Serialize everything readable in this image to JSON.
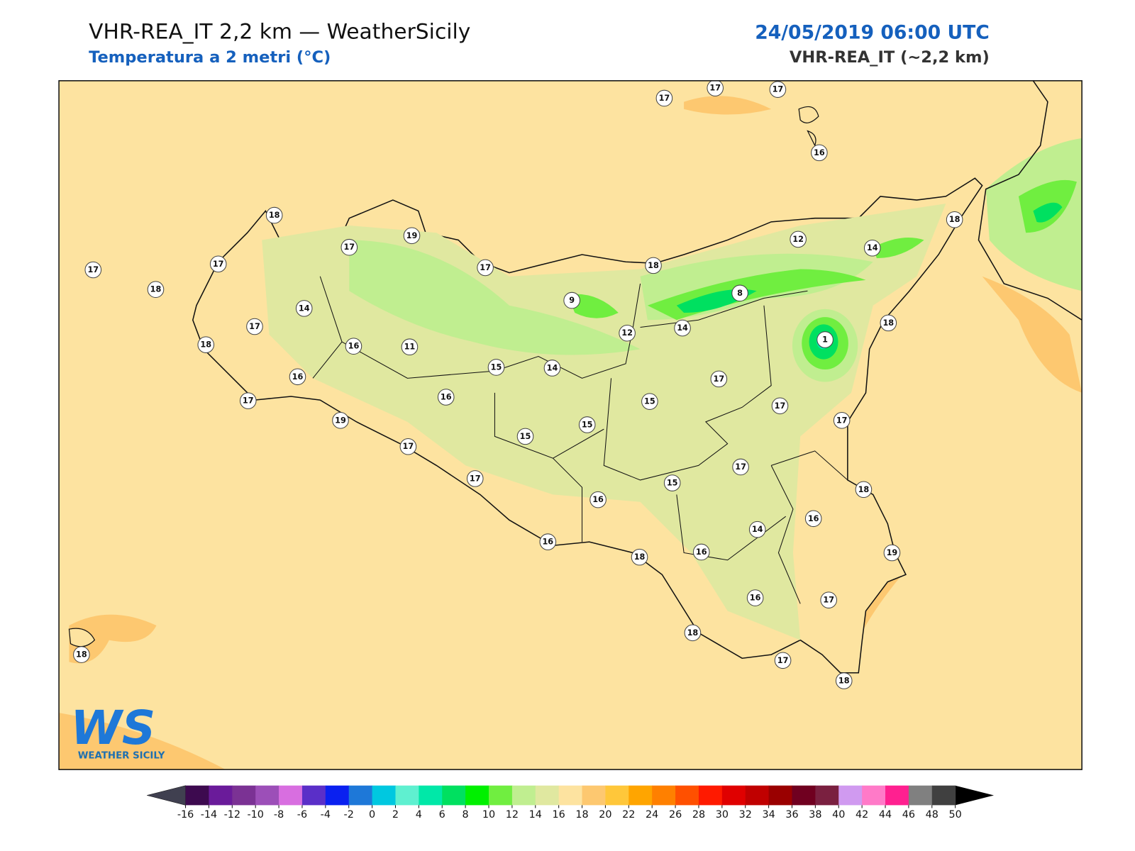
{
  "header": {
    "title": "VHR-REA_IT 2,2 km — WeatherSicily",
    "subtitle": "Temperatura a 2 metri (°C)",
    "date": "24/05/2019 06:00 UTC",
    "model": "VHR-REA_IT (~2,2 km)"
  },
  "stations": [
    17,
    17,
    17,
    16,
    18,
    19,
    17,
    17,
    17,
    18,
    17,
    18,
    12,
    14,
    18,
    9,
    8,
    14,
    12,
    1,
    18,
    14,
    17,
    18,
    16,
    11,
    15,
    14,
    16,
    17,
    16,
    17,
    15,
    17,
    17,
    19,
    15,
    15,
    17,
    17,
    17,
    15,
    18,
    16,
    16,
    14,
    19,
    16,
    18,
    16,
    17,
    16,
    18,
    17,
    18,
    18
  ],
  "colorbar": {
    "ticks": [
      -16,
      -14,
      -12,
      -10,
      -8,
      -6,
      -4,
      -2,
      0,
      2,
      4,
      6,
      8,
      10,
      12,
      14,
      16,
      18,
      20,
      22,
      24,
      26,
      28,
      30,
      32,
      34,
      36,
      38,
      40,
      42,
      44,
      46,
      48,
      50
    ],
    "colors": [
      "#3d0a4f",
      "#6a1b9a",
      "#7b3294",
      "#9c4fb8",
      "#d86ee0",
      "#5a2fc8",
      "#0a20f0",
      "#1e78d8",
      "#00c8e0",
      "#5ff0d0",
      "#00e8a8",
      "#00e060",
      "#00f000",
      "#70ee40",
      "#c0ee90",
      "#e0e8a0",
      "#fde3a0",
      "#fdc870",
      "#ffc73a",
      "#ffa500",
      "#ff8000",
      "#ff5000",
      "#ff1a00",
      "#e00000",
      "#c00000",
      "#9a0000",
      "#700020",
      "#7a2040",
      "#d09af0",
      "#ff7ac8",
      "#ff2090",
      "#808080",
      "#404040"
    ],
    "under_color": "#404050",
    "over_color": "#000000"
  },
  "logo": {
    "initials": "WS",
    "name": "WEATHER SICILY"
  }
}
